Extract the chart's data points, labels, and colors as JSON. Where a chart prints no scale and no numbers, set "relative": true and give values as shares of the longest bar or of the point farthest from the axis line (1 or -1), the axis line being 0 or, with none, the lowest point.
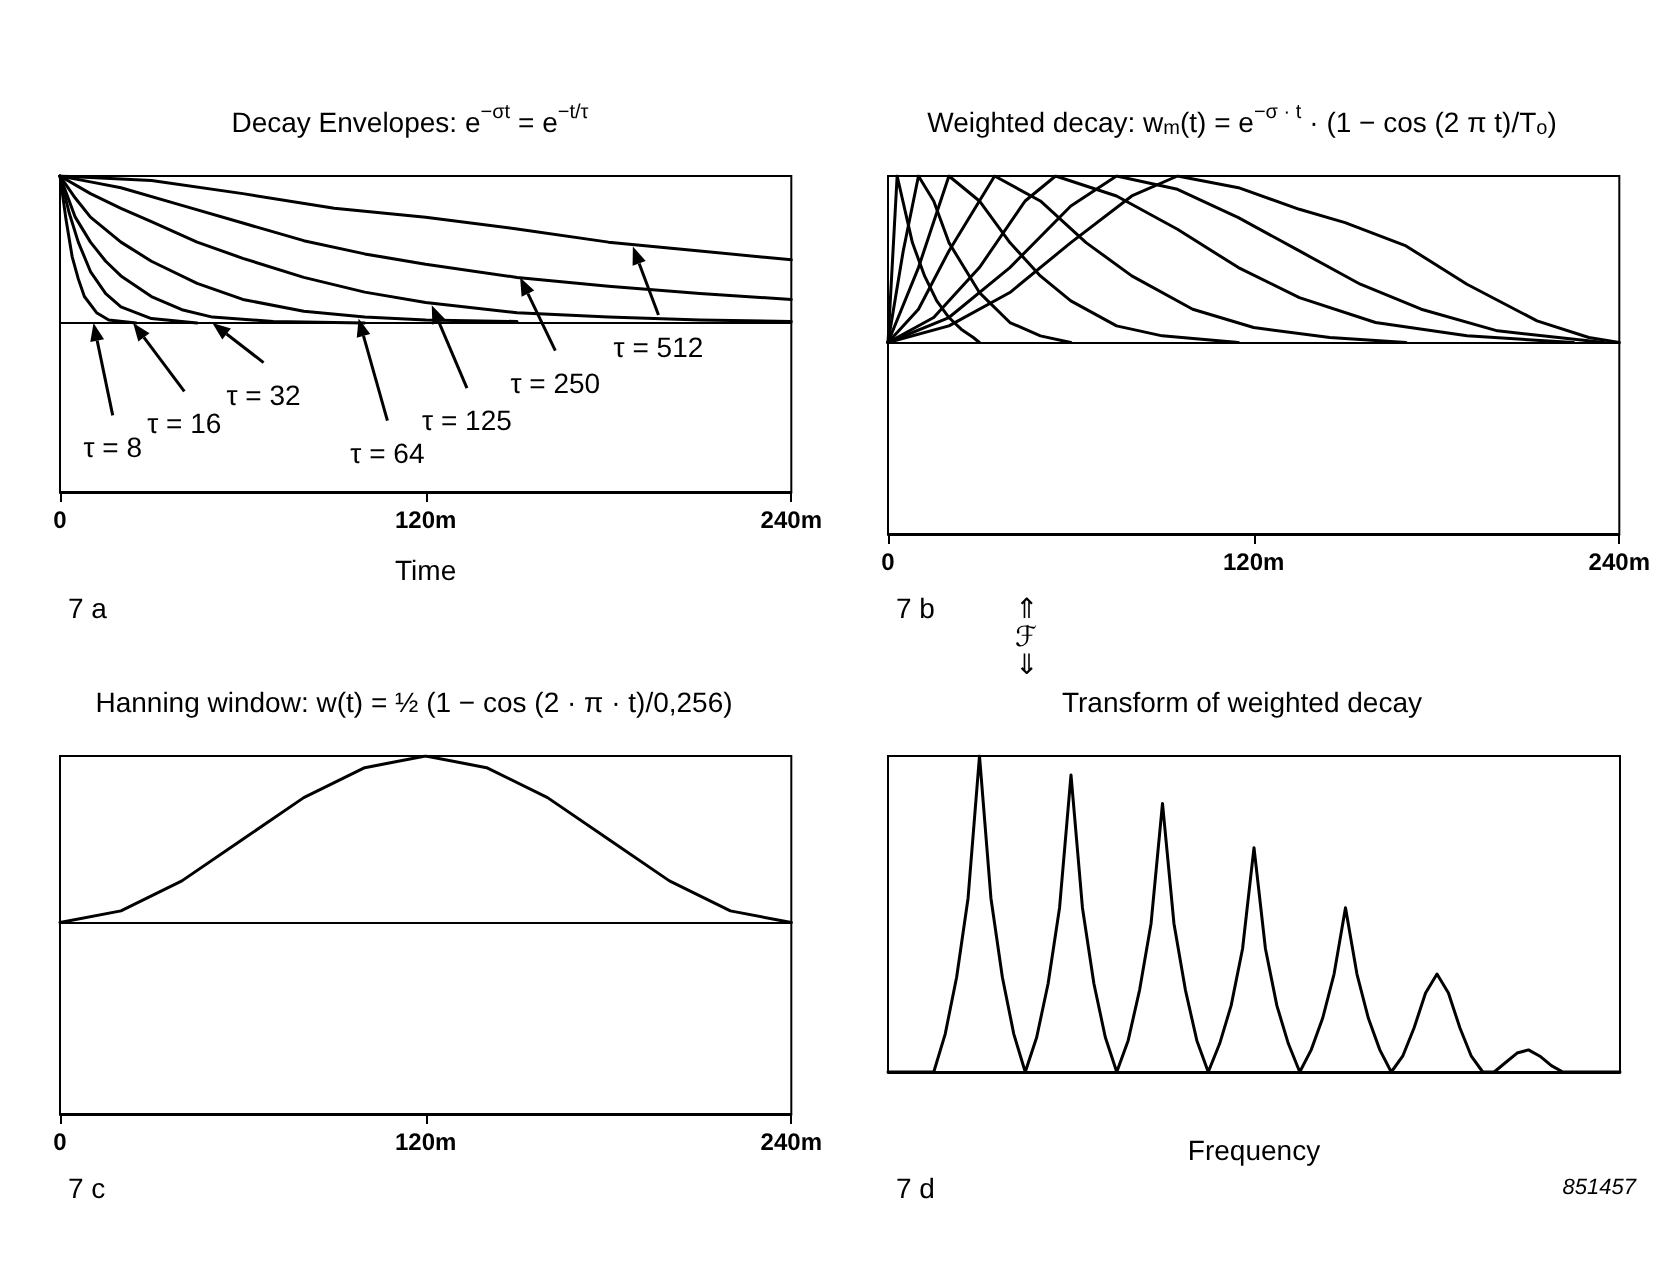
{
  "chart_data": [
    {
      "type": "line",
      "title": "Decay Envelopes: e$^{−σt}$ = e$^{−t/τ}$",
      "xlabel": "Time",
      "relative": true,
      "xlim": [
        0,
        240
      ],
      "xticks": [
        {
          "value": 0,
          "label": "0"
        },
        {
          "value": 120,
          "label": "120m"
        },
        {
          "value": 240,
          "label": "240m"
        }
      ],
      "series": [
        {
          "color": "#000000",
          "x": [
            0,
            2,
            4,
            6,
            8,
            12,
            16,
            25
          ],
          "values": [
            1,
            0.7,
            0.45,
            0.3,
            0.18,
            0.07,
            0.02,
            0
          ]
        },
        {
          "color": "#000000",
          "x": [
            0,
            3,
            6,
            10,
            15,
            20,
            30,
            45
          ],
          "values": [
            1,
            0.75,
            0.55,
            0.35,
            0.2,
            0.11,
            0.03,
            0
          ]
        },
        {
          "color": "#000000",
          "x": [
            0,
            5,
            10,
            15,
            20,
            30,
            40,
            50,
            70,
            100
          ],
          "values": [
            1,
            0.72,
            0.55,
            0.42,
            0.32,
            0.18,
            0.09,
            0.04,
            0.01,
            0
          ]
        },
        {
          "color": "#000000",
          "x": [
            0,
            5,
            10,
            20,
            30,
            45,
            60,
            80,
            100,
            120,
            150
          ],
          "values": [
            1,
            0.85,
            0.72,
            0.55,
            0.42,
            0.27,
            0.16,
            0.08,
            0.04,
            0.02,
            0.01
          ]
        },
        {
          "color": "#000000",
          "x": [
            0,
            10,
            20,
            30,
            45,
            60,
            80,
            100,
            120,
            150,
            180,
            210,
            240
          ],
          "values": [
            1,
            0.88,
            0.78,
            0.69,
            0.55,
            0.44,
            0.31,
            0.21,
            0.14,
            0.07,
            0.04,
            0.02,
            0.01
          ]
        },
        {
          "color": "#000000",
          "x": [
            0,
            10,
            20,
            40,
            60,
            80,
            100,
            120,
            150,
            180,
            210,
            240
          ],
          "values": [
            1,
            0.96,
            0.92,
            0.8,
            0.68,
            0.56,
            0.47,
            0.4,
            0.31,
            0.25,
            0.2,
            0.16
          ]
        },
        {
          "color": "#000000",
          "x": [
            0,
            30,
            60,
            90,
            120,
            150,
            180,
            210,
            240
          ],
          "values": [
            1,
            0.97,
            0.88,
            0.78,
            0.72,
            0.64,
            0.55,
            0.49,
            0.43
          ]
        }
      ],
      "annotations": [
        {
          "text": "τ = 8",
          "x": 11,
          "y": 0
        },
        {
          "text": "τ = 16",
          "x": 24,
          "y": 0
        },
        {
          "text": "τ = 32",
          "x": 50,
          "y": 0
        },
        {
          "text": "τ = 64",
          "x": 98,
          "y": 0.03
        },
        {
          "text": "τ = 125",
          "x": 122,
          "y": 0.12
        },
        {
          "text": "τ = 250",
          "x": 151,
          "y": 0.31
        },
        {
          "text": "τ = 512",
          "x": 188,
          "y": 0.52
        },
        "7 a"
      ]
    },
    {
      "type": "line",
      "title": "Weighted decay: w$_{m}$(t) = e$^{−σ · t}$ · (1 − cos (2 π t)/T$_{o}$)",
      "relative": true,
      "xlim": [
        0,
        240
      ],
      "xticks": [
        {
          "value": 0,
          "label": "0"
        },
        {
          "value": 120,
          "label": "120m"
        },
        {
          "value": 240,
          "label": "240m"
        }
      ],
      "series": [
        {
          "color": "#000000",
          "x": [
            0,
            3,
            8,
            12,
            16,
            20,
            24,
            28,
            30
          ],
          "values": [
            0,
            1,
            0.6,
            0.4,
            0.25,
            0.15,
            0.08,
            0.03,
            0
          ]
        },
        {
          "color": "#000000",
          "x": [
            0,
            5,
            10,
            15,
            20,
            30,
            40,
            50,
            60
          ],
          "values": [
            0,
            0.55,
            1,
            0.85,
            0.6,
            0.3,
            0.12,
            0.04,
            0
          ]
        },
        {
          "color": "#000000",
          "x": [
            0,
            10,
            20,
            30,
            40,
            50,
            60,
            75,
            90,
            115
          ],
          "values": [
            0,
            0.45,
            1,
            0.85,
            0.6,
            0.4,
            0.25,
            0.1,
            0.04,
            0
          ]
        },
        {
          "color": "#000000",
          "x": [
            0,
            10,
            20,
            35,
            50,
            65,
            80,
            100,
            120,
            145,
            170
          ],
          "values": [
            0,
            0.2,
            0.55,
            1,
            0.85,
            0.6,
            0.4,
            0.2,
            0.09,
            0.03,
            0
          ]
        },
        {
          "color": "#000000",
          "x": [
            0,
            15,
            30,
            45,
            55,
            75,
            95,
            115,
            135,
            160,
            190,
            225
          ],
          "values": [
            0,
            0.15,
            0.45,
            0.85,
            1,
            0.88,
            0.68,
            0.45,
            0.27,
            0.12,
            0.04,
            0
          ]
        },
        {
          "color": "#000000",
          "x": [
            0,
            20,
            40,
            60,
            75,
            95,
            115,
            135,
            155,
            175,
            200,
            235
          ],
          "values": [
            0,
            0.15,
            0.45,
            0.82,
            1,
            0.92,
            0.75,
            0.55,
            0.35,
            0.2,
            0.07,
            0
          ]
        },
        {
          "color": "#000000",
          "x": [
            0,
            20,
            40,
            60,
            80,
            95,
            115,
            135,
            150,
            170,
            190,
            213,
            230,
            240
          ],
          "values": [
            0,
            0.1,
            0.3,
            0.6,
            0.88,
            1,
            0.93,
            0.8,
            0.72,
            0.58,
            0.35,
            0.13,
            0.03,
            0
          ]
        }
      ],
      "annotations": [
        "7 b",
        "⇑\nℱ\n⇓"
      ]
    },
    {
      "type": "line",
      "title": "Hanning window: w(t) = ½ (1 − cos (2 · π · t)/0,256)",
      "relative": true,
      "xlim": [
        0,
        240
      ],
      "xticks": [
        {
          "value": 0,
          "label": "0"
        },
        {
          "value": 120,
          "label": "120m"
        },
        {
          "value": 240,
          "label": "240m"
        }
      ],
      "series": [
        {
          "color": "#000000",
          "x": [
            0,
            20,
            40,
            60,
            80,
            100,
            120,
            140,
            160,
            180,
            200,
            220,
            240
          ],
          "values": [
            0,
            0.07,
            0.25,
            0.5,
            0.75,
            0.93,
            1,
            0.93,
            0.75,
            0.5,
            0.25,
            0.07,
            0
          ]
        }
      ],
      "annotations": [
        "7 c"
      ]
    },
    {
      "type": "line",
      "title": "Transform of weighted decay",
      "xlabel": "Frequency",
      "relative": true,
      "categories": [
        null,
        null,
        null,
        null,
        null,
        null,
        null,
        null,
        null,
        null,
        null,
        null,
        null,
        null,
        null,
        null,
        null,
        null,
        null,
        null,
        null,
        null,
        null,
        null,
        null,
        null,
        null,
        null,
        null,
        null,
        null,
        null,
        null,
        null,
        null,
        null,
        null,
        null,
        null,
        null,
        null,
        null,
        null,
        null,
        null,
        null,
        null,
        null,
        null,
        null,
        null,
        null,
        null,
        null,
        null,
        null,
        null,
        null,
        null,
        null,
        null,
        null,
        null,
        null,
        null
      ],
      "series": [
        {
          "color": "#000000",
          "values": [
            0,
            0,
            0,
            0,
            0,
            0.12,
            0.3,
            0.55,
            1,
            0.55,
            0.3,
            0.12,
            0,
            0.11,
            0.28,
            0.52,
            0.94,
            0.52,
            0.28,
            0.11,
            0,
            0.1,
            0.26,
            0.47,
            0.85,
            0.47,
            0.26,
            0.1,
            0,
            0.09,
            0.21,
            0.39,
            0.71,
            0.39,
            0.21,
            0.09,
            0,
            0.07,
            0.17,
            0.31,
            0.52,
            0.31,
            0.17,
            0.07,
            0,
            0.05,
            0.14,
            0.25,
            0.31,
            0.25,
            0.14,
            0.05,
            0,
            0,
            0.03,
            0.06,
            0.07,
            0.05,
            0.02,
            0,
            0,
            0,
            0,
            0,
            0
          ]
        }
      ],
      "annotations": [
        "7 d",
        "851457"
      ]
    }
  ]
}
